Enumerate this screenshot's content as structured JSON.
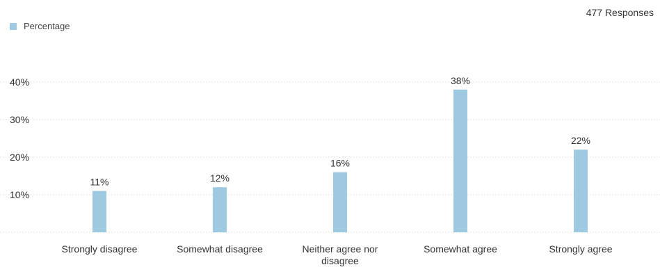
{
  "responses_label": "477 Responses",
  "chart_data": {
    "type": "bar",
    "categories": [
      "Strongly disagree",
      "Somewhat disagree",
      "Neither agree nor disagree",
      "Somewhat agree",
      "Strongly agree"
    ],
    "category_lines": [
      [
        "Strongly disagree"
      ],
      [
        "Somewhat disagree"
      ],
      [
        "Neither agree nor",
        "disagree"
      ],
      [
        "Somewhat agree"
      ],
      [
        "Strongly agree"
      ]
    ],
    "series": [
      {
        "name": "Percentage",
        "values": [
          11,
          12,
          16,
          38,
          22
        ],
        "labels": [
          "11%",
          "12%",
          "16%",
          "38%",
          "22%"
        ],
        "color": "#9ecae1"
      }
    ],
    "yticks": [
      10,
      20,
      30,
      40
    ],
    "ytick_labels": [
      "10%",
      "20%",
      "30%",
      "40%"
    ],
    "ylim": [
      0,
      45
    ],
    "grid": true,
    "legend_position": "top-left"
  }
}
